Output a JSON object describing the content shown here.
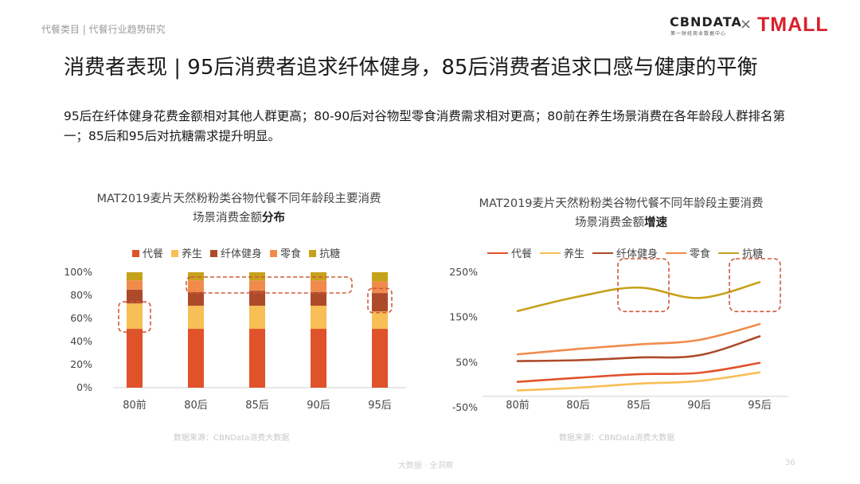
{
  "header": {
    "breadcrumb": "代餐类目 | 代餐行业趋势研究",
    "logo_cbn": "CBNDATA",
    "logo_cbn_sub": "第一财经商业数据中心",
    "logo_x": "×",
    "logo_tmall": "TMALL"
  },
  "slide": {
    "title": "消费者表现 | 95后消费者追求纤体健身，85后消费者追求口感与健康的平衡",
    "summary": "95后在纤体健身花费金额相对其他人群更高；80-90后对谷物型零食消费需求相对更高；80前在养生场景消费在各年龄段人群排名第一；85后和95后对抗糖需求提升明显。",
    "footer": "大数据 · 全洞察",
    "page_number": "36"
  },
  "colors": {
    "代餐": "#e0522a",
    "养生": "#f7bf55",
    "纤体健身": "#ad4a2a",
    "零食": "#f08b4c",
    "抗糖": "#c6a21a",
    "highlight": "#d05a3a"
  },
  "chart_data": [
    {
      "type": "bar",
      "stacked": true,
      "title_main": "MAT2019麦片天然粉粉类谷物代餐不同年龄段主要消费场景消费金额",
      "title_bold": "分布",
      "categories": [
        "80前",
        "80后",
        "85后",
        "90后",
        "95后"
      ],
      "series": [
        {
          "name": "代餐",
          "values": [
            51,
            51,
            51,
            51,
            51
          ]
        },
        {
          "name": "养生",
          "values": [
            22,
            20,
            20,
            20,
            15
          ]
        },
        {
          "name": "纤体健身",
          "values": [
            12,
            12,
            13,
            12,
            16
          ]
        },
        {
          "name": "零食",
          "values": [
            8,
            10,
            9,
            10,
            10
          ]
        },
        {
          "name": "抗糖",
          "values": [
            7,
            7,
            7,
            7,
            8
          ]
        }
      ],
      "yticks": [
        "0%",
        "20%",
        "40%",
        "60%",
        "80%",
        "100%"
      ],
      "ylim": [
        0,
        100
      ],
      "source": "数据来源：CBNData消费大数据"
    },
    {
      "type": "line",
      "title_main": "MAT2019麦片天然粉粉类谷物代餐不同年龄段主要消费场景消费金额",
      "title_bold": "增速",
      "categories": [
        "80前",
        "80后",
        "85后",
        "90后",
        "95后"
      ],
      "series": [
        {
          "name": "代餐",
          "values": [
            7,
            16,
            24,
            27,
            49
          ]
        },
        {
          "name": "养生",
          "values": [
            -12,
            -6,
            3,
            9,
            28
          ]
        },
        {
          "name": "纤体健身",
          "values": [
            53,
            55,
            61,
            66,
            108
          ]
        },
        {
          "name": "零食",
          "values": [
            68,
            80,
            90,
            100,
            135
          ]
        },
        {
          "name": "抗糖",
          "values": [
            164,
            196,
            216,
            193,
            228
          ]
        }
      ],
      "yticks": [
        "-50%",
        "50%",
        "150%",
        "250%"
      ],
      "ylim": [
        -50,
        250
      ],
      "source": "数据来源：CBNData消费大数据"
    }
  ]
}
